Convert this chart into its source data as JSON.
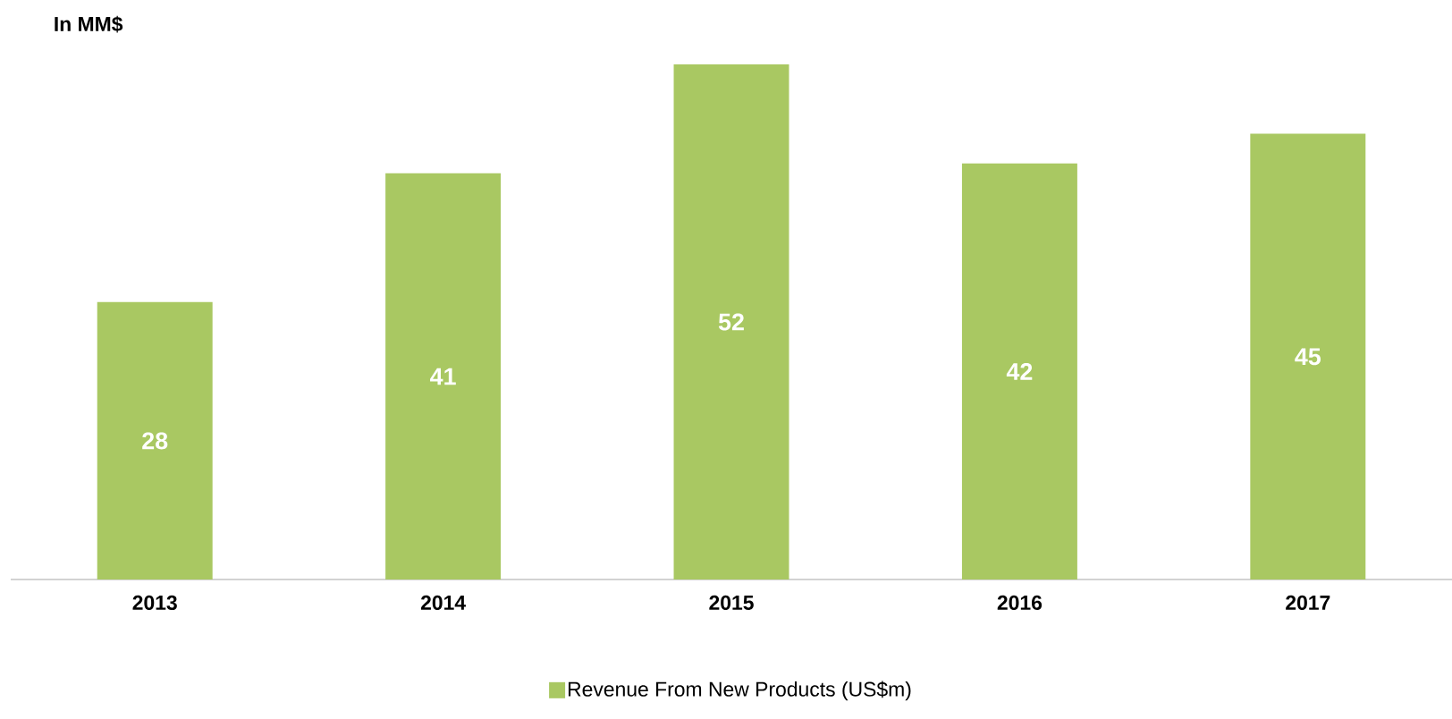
{
  "chart_data": {
    "type": "bar",
    "ylabel": "In MM$",
    "categories": [
      "2013",
      "2014",
      "2015",
      "2016",
      "2017"
    ],
    "series": [
      {
        "name": "Revenue From New Products (US$m)",
        "color": "#a9c862",
        "values": [
          28,
          41,
          52,
          42,
          45
        ]
      }
    ],
    "data_labels": true,
    "legend": "bottom"
  }
}
